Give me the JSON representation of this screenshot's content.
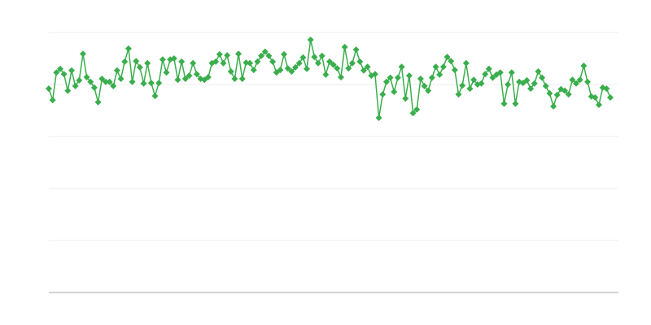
{
  "chart_data": {
    "type": "line",
    "color": "#3aae4c",
    "marker": "diamond",
    "grid": true,
    "ylim": [
      0,
      5
    ],
    "yticks": [
      0,
      1,
      2,
      3,
      4,
      5
    ],
    "values": [
      3.92,
      3.7,
      4.23,
      4.3,
      4.2,
      3.88,
      4.27,
      3.97,
      4.08,
      4.59,
      4.14,
      4.05,
      3.94,
      3.66,
      4.11,
      4.05,
      4.05,
      3.97,
      4.27,
      4.11,
      4.44,
      4.69,
      4.05,
      4.45,
      4.33,
      4.02,
      4.41,
      4.03,
      3.78,
      4.03,
      4.48,
      4.23,
      4.48,
      4.5,
      4.09,
      4.44,
      4.11,
      4.17,
      4.41,
      4.2,
      4.11,
      4.09,
      4.14,
      4.41,
      4.44,
      4.58,
      4.41,
      4.56,
      4.25,
      4.11,
      4.59,
      4.11,
      4.42,
      4.41,
      4.28,
      4.44,
      4.55,
      4.63,
      4.55,
      4.44,
      4.23,
      4.28,
      4.58,
      4.31,
      4.25,
      4.33,
      4.41,
      4.52,
      4.3,
      4.86,
      4.53,
      4.41,
      4.55,
      4.19,
      4.44,
      4.38,
      4.31,
      4.14,
      4.72,
      4.31,
      4.41,
      4.67,
      4.44,
      4.27,
      4.34,
      4.17,
      4.2,
      3.36,
      3.81,
      4.05,
      4.13,
      3.86,
      4.13,
      4.34,
      3.73,
      4.17,
      3.45,
      3.52,
      4.11,
      3.97,
      3.88,
      4.13,
      4.34,
      4.19,
      4.34,
      4.53,
      4.45,
      4.28,
      3.81,
      3.98,
      4.41,
      3.92,
      4.09,
      4.0,
      4.02,
      4.2,
      4.3,
      4.13,
      4.19,
      4.23,
      3.63,
      4.0,
      4.23,
      3.63,
      4.05,
      4.03,
      4.08,
      3.92,
      4.02,
      4.25,
      4.13,
      3.97,
      3.83,
      3.58,
      3.8,
      3.91,
      3.88,
      3.81,
      4.09,
      4.02,
      4.09,
      4.36,
      4.05,
      3.77,
      3.75,
      3.61,
      3.94,
      3.92,
      3.75
    ]
  }
}
